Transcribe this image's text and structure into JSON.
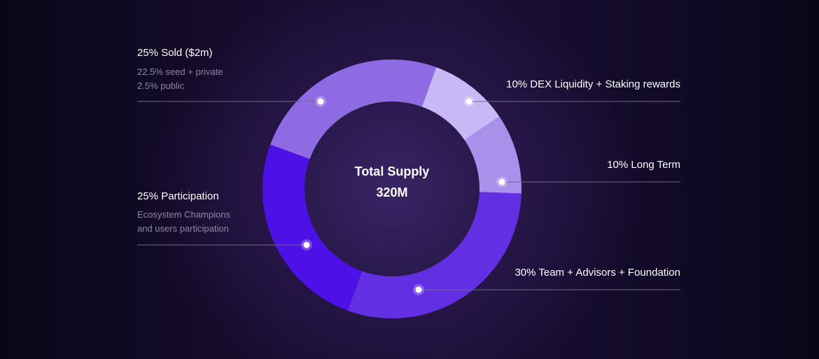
{
  "chart_data": {
    "type": "pie",
    "variant": "donut",
    "center_title": "Total Supply",
    "center_value": "320M",
    "slices": [
      {
        "percent": 25,
        "label": "25% Sold ($2m)",
        "sublines": [
          "22.5% seed + private",
          "2.5% public"
        ],
        "color": "#8f6be3"
      },
      {
        "percent": 10,
        "label": "10% DEX Liquidity + Staking rewards",
        "color": "#c8b8f5"
      },
      {
        "percent": 10,
        "label": "10% Long Term",
        "color": "#aa90ea"
      },
      {
        "percent": 30,
        "label": "30% Team + Advisors + Foundation",
        "color": "#6230e2"
      },
      {
        "percent": 25,
        "label": "25% Participation",
        "sublines": [
          "Ecosystem Champions",
          "and users participation"
        ],
        "color": "#4d10e6"
      }
    ]
  },
  "colors": {
    "background": "#120a28",
    "leader_line": "#6f6a86",
    "label_text": "#ffffff",
    "sub_text": "#8e88a3"
  }
}
